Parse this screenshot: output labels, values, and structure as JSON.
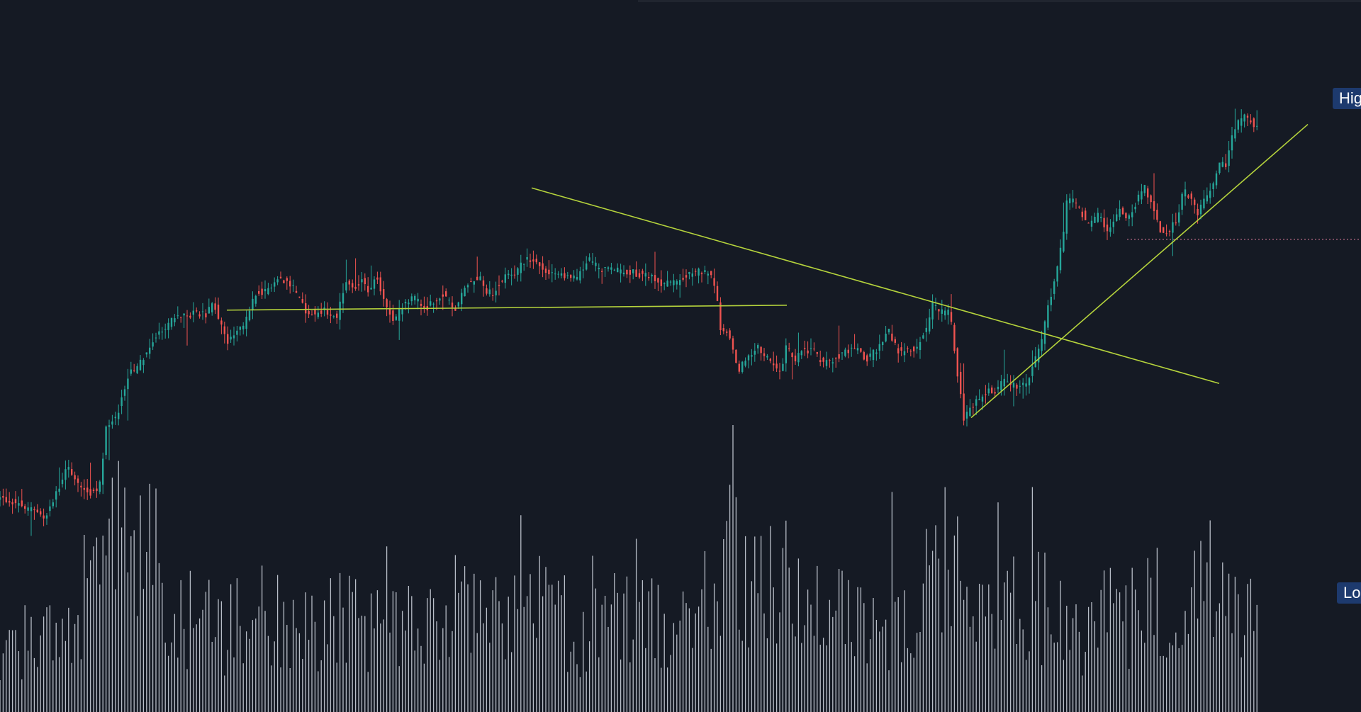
{
  "chart": {
    "type": "candlestick",
    "high_label": "Hig",
    "low_label": "Lo",
    "colors": {
      "background": "#151a24",
      "up": "#26a69a",
      "down": "#ef5350",
      "volume": "#b8bec8",
      "trendline": "#b5d33c",
      "reference_line": "#e57fa0",
      "label_bg": "#1d3a6e"
    }
  },
  "chart_data": {
    "type": "candlestick",
    "title": "",
    "xlabel": "",
    "ylabel": "",
    "grid": false,
    "close_path": [
      [
        0,
        28
      ],
      [
        25,
        26
      ],
      [
        50,
        22
      ],
      [
        65,
        21
      ],
      [
        80,
        30
      ],
      [
        93,
        41
      ],
      [
        105,
        36
      ],
      [
        125,
        30
      ],
      [
        140,
        32
      ],
      [
        150,
        58
      ],
      [
        165,
        62
      ],
      [
        180,
        78
      ],
      [
        195,
        82
      ],
      [
        215,
        93
      ],
      [
        232,
        97
      ],
      [
        245,
        102
      ],
      [
        262,
        103
      ],
      [
        280,
        104
      ],
      [
        292,
        103
      ],
      [
        300,
        109
      ],
      [
        320,
        92
      ],
      [
        330,
        95
      ],
      [
        345,
        99
      ],
      [
        360,
        112
      ],
      [
        375,
        113
      ],
      [
        385,
        116
      ],
      [
        395,
        118
      ],
      [
        410,
        116
      ],
      [
        420,
        111
      ],
      [
        430,
        105
      ],
      [
        445,
        103
      ],
      [
        460,
        105
      ],
      [
        475,
        102
      ],
      [
        480,
        109
      ],
      [
        490,
        117
      ],
      [
        500,
        114
      ],
      [
        510,
        118
      ],
      [
        520,
        112
      ],
      [
        530,
        119
      ],
      [
        540,
        111
      ],
      [
        555,
        100
      ],
      [
        570,
        108
      ],
      [
        585,
        110
      ],
      [
        600,
        105
      ],
      [
        615,
        110
      ],
      [
        625,
        112
      ],
      [
        640,
        105
      ],
      [
        650,
        110
      ],
      [
        660,
        116
      ],
      [
        675,
        119
      ],
      [
        685,
        113
      ],
      [
        695,
        112
      ],
      [
        715,
        120
      ],
      [
        730,
        121
      ],
      [
        745,
        127
      ],
      [
        760,
        123
      ],
      [
        780,
        120
      ],
      [
        800,
        119
      ],
      [
        815,
        118
      ],
      [
        830,
        126
      ],
      [
        845,
        122
      ],
      [
        860,
        121
      ],
      [
        880,
        121
      ],
      [
        900,
        120
      ],
      [
        920,
        118
      ],
      [
        935,
        116
      ],
      [
        950,
        116
      ],
      [
        970,
        119
      ],
      [
        985,
        121
      ],
      [
        1000,
        120
      ],
      [
        1010,
        114
      ],
      [
        1015,
        98
      ],
      [
        1030,
        94
      ],
      [
        1040,
        80
      ],
      [
        1055,
        85
      ],
      [
        1070,
        90
      ],
      [
        1080,
        86
      ],
      [
        1090,
        82
      ],
      [
        1100,
        79
      ],
      [
        1110,
        91
      ],
      [
        1120,
        83
      ],
      [
        1130,
        88
      ],
      [
        1145,
        89
      ],
      [
        1160,
        83
      ],
      [
        1170,
        84
      ],
      [
        1180,
        86
      ],
      [
        1190,
        87
      ],
      [
        1205,
        90
      ],
      [
        1215,
        87
      ],
      [
        1225,
        85
      ],
      [
        1240,
        90
      ],
      [
        1255,
        97
      ],
      [
        1260,
        92
      ],
      [
        1270,
        87
      ],
      [
        1280,
        89
      ],
      [
        1290,
        88
      ],
      [
        1300,
        93
      ],
      [
        1310,
        100
      ],
      [
        1315,
        107
      ],
      [
        1325,
        104
      ],
      [
        1340,
        104
      ],
      [
        1352,
        76
      ],
      [
        1360,
        60
      ],
      [
        1370,
        66
      ],
      [
        1380,
        68
      ],
      [
        1395,
        73
      ],
      [
        1405,
        71
      ],
      [
        1415,
        76
      ],
      [
        1430,
        74
      ],
      [
        1450,
        75
      ],
      [
        1460,
        84
      ],
      [
        1470,
        93
      ],
      [
        1480,
        108
      ],
      [
        1490,
        120
      ],
      [
        1500,
        135
      ],
      [
        1505,
        149
      ],
      [
        1515,
        150
      ],
      [
        1520,
        148
      ],
      [
        1535,
        140
      ],
      [
        1550,
        144
      ],
      [
        1560,
        137
      ],
      [
        1570,
        140
      ],
      [
        1580,
        148
      ],
      [
        1590,
        142
      ],
      [
        1600,
        148
      ],
      [
        1615,
        155
      ],
      [
        1625,
        148
      ],
      [
        1635,
        138
      ],
      [
        1645,
        136
      ],
      [
        1660,
        142
      ],
      [
        1670,
        154
      ],
      [
        1680,
        150
      ],
      [
        1690,
        145
      ],
      [
        1700,
        150
      ],
      [
        1710,
        156
      ],
      [
        1720,
        164
      ],
      [
        1730,
        165
      ],
      [
        1740,
        178
      ],
      [
        1750,
        183
      ],
      [
        1760,
        184
      ],
      [
        1770,
        180
      ],
      [
        1775,
        182
      ]
    ],
    "volume_profile": [
      [
        0,
        22
      ],
      [
        40,
        35
      ],
      [
        80,
        40
      ],
      [
        120,
        50
      ],
      [
        150,
        60
      ],
      [
        165,
        72
      ],
      [
        180,
        65
      ],
      [
        200,
        80
      ],
      [
        215,
        72
      ],
      [
        240,
        45
      ],
      [
        280,
        38
      ],
      [
        320,
        35
      ],
      [
        360,
        48
      ],
      [
        400,
        40
      ],
      [
        440,
        35
      ],
      [
        480,
        42
      ],
      [
        520,
        35
      ],
      [
        560,
        38
      ],
      [
        600,
        33
      ],
      [
        640,
        45
      ],
      [
        700,
        38
      ],
      [
        740,
        52
      ],
      [
        780,
        45
      ],
      [
        820,
        34
      ],
      [
        860,
        40
      ],
      [
        900,
        38
      ],
      [
        940,
        40
      ],
      [
        980,
        42
      ],
      [
        1040,
        68
      ],
      [
        1080,
        58
      ],
      [
        1120,
        52
      ],
      [
        1160,
        40
      ],
      [
        1200,
        44
      ],
      [
        1240,
        35
      ],
      [
        1280,
        42
      ],
      [
        1320,
        58
      ],
      [
        1340,
        72
      ],
      [
        1360,
        48
      ],
      [
        1400,
        35
      ],
      [
        1440,
        48
      ],
      [
        1480,
        45
      ],
      [
        1520,
        35
      ],
      [
        1560,
        40
      ],
      [
        1600,
        42
      ],
      [
        1640,
        50
      ],
      [
        1680,
        42
      ],
      [
        1700,
        60
      ],
      [
        1720,
        48
      ],
      [
        1760,
        45
      ],
      [
        1775,
        42
      ]
    ],
    "x_range": [
      0,
      1775
    ],
    "y_range": [
      0,
      200
    ],
    "volume_range": [
      0,
      100
    ],
    "drawings": [
      {
        "name": "support-line",
        "from": [
          320,
          105
        ],
        "to": [
          1110,
          107
        ]
      },
      {
        "name": "descending-trendline",
        "from": [
          750,
          155
        ],
        "to": [
          1720,
          75
        ]
      },
      {
        "name": "ascending-trendline",
        "from": [
          1370,
          61
        ],
        "to": [
          1845,
          181
        ]
      }
    ],
    "reference_price": 134
  }
}
